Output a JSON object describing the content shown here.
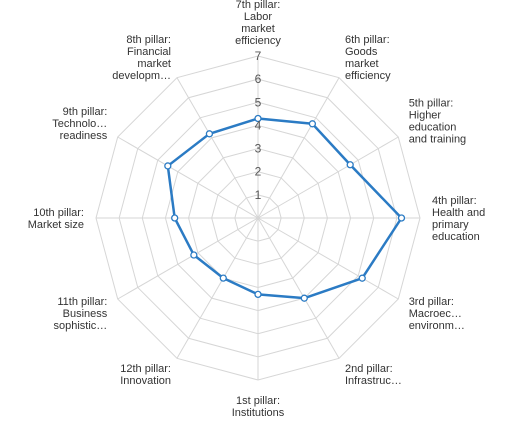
{
  "chart_data": {
    "type": "radar",
    "ylim": [
      0,
      7
    ],
    "ticks": [
      "1",
      "2",
      "3",
      "4",
      "5",
      "6",
      "7"
    ],
    "grid": true,
    "categories": [
      [
        "7th pillar:",
        "Labor",
        "market",
        "efficiency"
      ],
      [
        "6th pillar:",
        "Goods",
        "market",
        "efficiency"
      ],
      [
        "5th pillar:",
        "Higher",
        "education",
        "and training"
      ],
      [
        "4th pillar:",
        "Health and",
        "primary",
        "education"
      ],
      [
        "3rd pillar:",
        "Macroec…",
        "environm…"
      ],
      [
        "2nd pillar:",
        "Infrastruc…"
      ],
      [
        "1st pillar:",
        "Institutions"
      ],
      [
        "12th pillar:",
        "Innovation"
      ],
      [
        "11th pillar:",
        "Business",
        "sophistic…"
      ],
      [
        "10th pillar:",
        "Market size"
      ],
      [
        "9th pillar:",
        "Technolo…",
        "readiness"
      ],
      [
        "8th pillar:",
        "Financial",
        "market",
        "developm…"
      ]
    ],
    "series": [
      {
        "values": [
          4.3,
          4.7,
          4.6,
          6.2,
          5.2,
          4.0,
          3.3,
          3.0,
          3.2,
          3.6,
          4.5,
          4.2
        ],
        "color": "#2b7bc4"
      }
    ]
  }
}
